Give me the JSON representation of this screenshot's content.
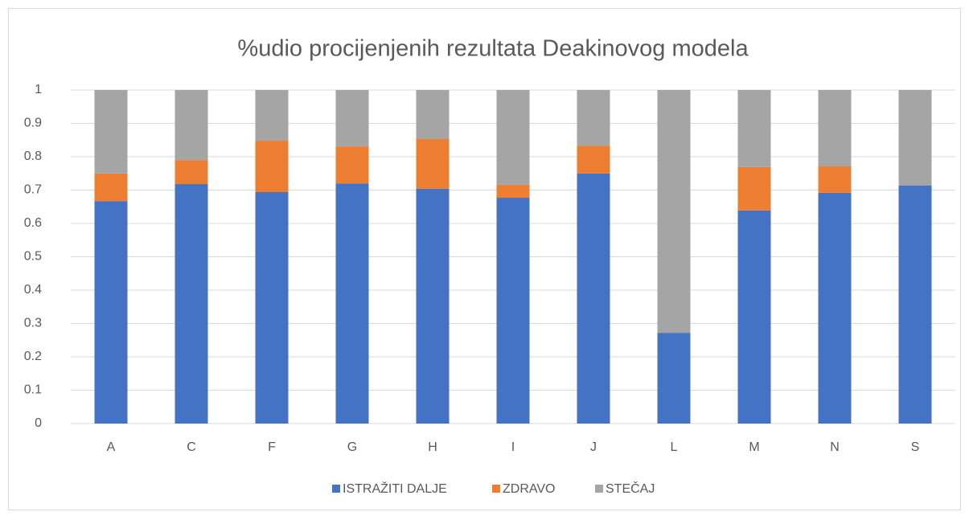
{
  "chart_data": {
    "type": "stacked_bar",
    "title": "%udio procijenjenih rezultata Deakinovog modela",
    "categories": [
      "A",
      "C",
      "F",
      "G",
      "H",
      "I",
      "J",
      "L",
      "M",
      "N",
      "S"
    ],
    "series": [
      {
        "name": "ISTRAŽITI DALJE",
        "color": "#4472c4",
        "values": [
          0.667,
          0.718,
          0.694,
          0.72,
          0.704,
          0.677,
          0.75,
          0.272,
          0.639,
          0.692,
          0.714
        ]
      },
      {
        "name": "ZDRAVO",
        "color": "#ed7d31",
        "values": [
          0.083,
          0.072,
          0.154,
          0.111,
          0.149,
          0.039,
          0.083,
          0,
          0.13,
          0.079,
          0
        ]
      },
      {
        "name": "STEČAJ",
        "color": "#a5a5a5",
        "values": [
          0.25,
          0.21,
          0.152,
          0.169,
          0.147,
          0.284,
          0.167,
          0.728,
          0.231,
          0.229,
          0.286
        ]
      }
    ],
    "ylim": [
      0,
      1
    ],
    "yticks": [
      0,
      0.1,
      0.2,
      0.3,
      0.4,
      0.5,
      0.6,
      0.7,
      0.8,
      0.9,
      1
    ],
    "grid": true,
    "legend": "bottom"
  }
}
